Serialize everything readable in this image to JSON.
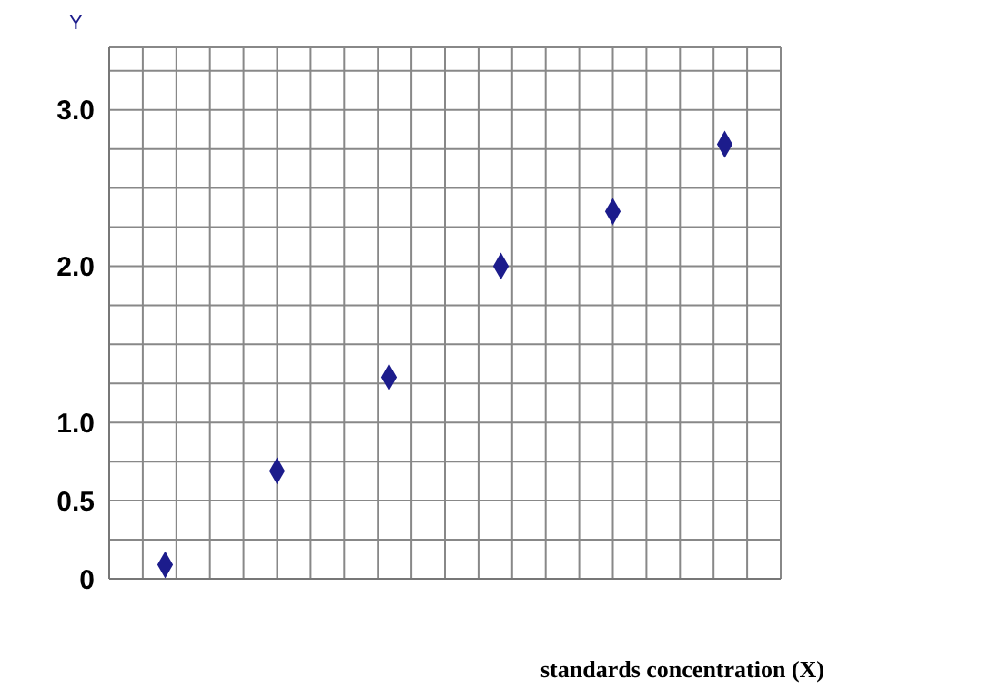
{
  "chart_data": {
    "type": "scatter",
    "ylabel": "Y",
    "xlabel": "standards concentration (X)",
    "categories": [
      null,
      null,
      null,
      null,
      null,
      null
    ],
    "values": [
      0.09,
      0.69,
      1.29,
      2.0,
      2.35,
      2.78
    ],
    "color": "#1c1c8c",
    "marker": "diamond",
    "grid": true,
    "tick_labels": "y",
    "ylim": [
      0,
      3.4
    ],
    "yticks": [
      0,
      {
        "value": 0.25,
        "label": null
      },
      0.5,
      {
        "value": 0.75,
        "label": null
      },
      {
        "value": 1,
        "label": "1.0"
      },
      {
        "value": 1.25,
        "label": null
      },
      {
        "value": 1.5,
        "label": null
      },
      {
        "value": 1.75,
        "label": null
      },
      {
        "value": 2,
        "label": "2.0"
      },
      {
        "value": 2.25,
        "label": null
      },
      {
        "value": 2.5,
        "label": null
      },
      {
        "value": 2.75,
        "label": null
      },
      {
        "value": 3,
        "label": "3.0"
      },
      {
        "value": 3.25,
        "label": null
      }
    ]
  }
}
